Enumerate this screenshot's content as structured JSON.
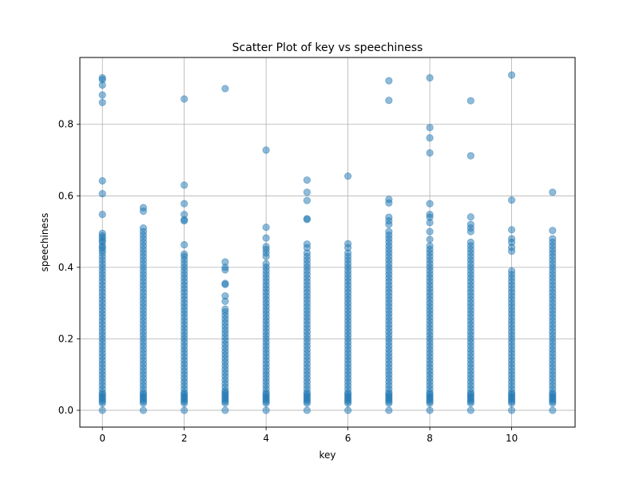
{
  "chart_data": {
    "type": "scatter",
    "title": "Scatter Plot of key vs speechiness",
    "xlabel": "key",
    "ylabel": "speechiness",
    "xlim": [
      -0.55,
      11.55
    ],
    "ylim": [
      -0.047,
      0.987
    ],
    "xticks": [
      0,
      2,
      4,
      6,
      8,
      10
    ],
    "xtick_labels": [
      "0",
      "2",
      "4",
      "6",
      "8",
      "10"
    ],
    "yticks": [
      0.0,
      0.2,
      0.4,
      0.6,
      0.8
    ],
    "ytick_labels": [
      "0.0",
      "0.2",
      "0.4",
      "0.6",
      "0.8"
    ],
    "grid": true,
    "marker_color": "#1f77b4",
    "marker_alpha": 0.5,
    "series": [
      {
        "points": [
          {
            "key": 0,
            "speechiness": [
              0.93,
              0.925,
              0.91,
              0.882,
              0.861,
              0.642,
              0.606,
              0.548,
              0.495,
              0.488,
              0.482,
              0.475,
              0.47,
              0.46,
              0.455,
              0.448,
              0.44,
              0.43,
              0.42,
              0.41,
              0.4,
              0.39,
              0.38,
              0.37,
              0.36,
              0.35,
              0.34,
              0.33,
              0.32,
              0.31,
              0.3,
              0.29,
              0.28,
              0.27,
              0.26,
              0.25,
              0.24,
              0.23,
              0.22,
              0.21,
              0.2,
              0.19,
              0.18,
              0.17,
              0.16,
              0.15,
              0.14,
              0.13,
              0.12,
              0.11,
              0.1,
              0.09,
              0.08,
              0.07,
              0.06,
              0.05,
              0.045,
              0.04,
              0.035,
              0.03,
              0.025,
              0.02,
              0.0
            ]
          },
          {
            "key": 1,
            "speechiness": [
              0.567,
              0.557,
              0.51,
              0.5,
              0.49,
              0.48,
              0.47,
              0.46,
              0.45,
              0.44,
              0.43,
              0.42,
              0.41,
              0.4,
              0.39,
              0.38,
              0.37,
              0.36,
              0.35,
              0.34,
              0.33,
              0.32,
              0.31,
              0.3,
              0.29,
              0.28,
              0.27,
              0.26,
              0.25,
              0.24,
              0.23,
              0.22,
              0.21,
              0.2,
              0.19,
              0.18,
              0.17,
              0.16,
              0.15,
              0.14,
              0.13,
              0.12,
              0.11,
              0.1,
              0.09,
              0.08,
              0.07,
              0.06,
              0.05,
              0.045,
              0.04,
              0.035,
              0.03,
              0.025,
              0.02,
              0.0
            ]
          },
          {
            "key": 2,
            "speechiness": [
              0.871,
              0.63,
              0.578,
              0.548,
              0.533,
              0.53,
              0.463,
              0.437,
              0.43,
              0.42,
              0.41,
              0.4,
              0.39,
              0.38,
              0.37,
              0.36,
              0.35,
              0.34,
              0.33,
              0.32,
              0.31,
              0.3,
              0.29,
              0.28,
              0.27,
              0.26,
              0.25,
              0.24,
              0.23,
              0.22,
              0.21,
              0.2,
              0.19,
              0.18,
              0.17,
              0.16,
              0.15,
              0.14,
              0.13,
              0.12,
              0.11,
              0.1,
              0.09,
              0.08,
              0.07,
              0.06,
              0.05,
              0.045,
              0.04,
              0.035,
              0.03,
              0.025,
              0.02,
              0.0
            ]
          },
          {
            "key": 3,
            "speechiness": [
              0.9,
              0.415,
              0.4,
              0.393,
              0.355,
              0.352,
              0.32,
              0.305,
              0.283,
              0.275,
              0.265,
              0.255,
              0.245,
              0.235,
              0.225,
              0.215,
              0.205,
              0.195,
              0.185,
              0.175,
              0.165,
              0.155,
              0.145,
              0.135,
              0.125,
              0.115,
              0.105,
              0.095,
              0.085,
              0.075,
              0.065,
              0.055,
              0.05,
              0.045,
              0.04,
              0.035,
              0.03,
              0.025,
              0.02,
              0.0
            ]
          },
          {
            "key": 4,
            "speechiness": [
              0.728,
              0.512,
              0.482,
              0.458,
              0.45,
              0.44,
              0.43,
              0.41,
              0.4,
              0.39,
              0.38,
              0.37,
              0.36,
              0.35,
              0.34,
              0.33,
              0.32,
              0.31,
              0.3,
              0.29,
              0.28,
              0.27,
              0.26,
              0.25,
              0.24,
              0.23,
              0.22,
              0.21,
              0.2,
              0.19,
              0.18,
              0.17,
              0.16,
              0.15,
              0.14,
              0.13,
              0.12,
              0.11,
              0.1,
              0.09,
              0.08,
              0.07,
              0.06,
              0.05,
              0.045,
              0.04,
              0.035,
              0.03,
              0.025,
              0.02,
              0.0
            ]
          },
          {
            "key": 5,
            "speechiness": [
              0.644,
              0.61,
              0.587,
              0.536,
              0.534,
              0.465,
              0.455,
              0.44,
              0.43,
              0.42,
              0.41,
              0.4,
              0.39,
              0.38,
              0.37,
              0.36,
              0.35,
              0.34,
              0.33,
              0.32,
              0.31,
              0.3,
              0.29,
              0.28,
              0.27,
              0.26,
              0.25,
              0.24,
              0.23,
              0.22,
              0.21,
              0.2,
              0.19,
              0.18,
              0.17,
              0.16,
              0.15,
              0.14,
              0.13,
              0.12,
              0.11,
              0.1,
              0.09,
              0.08,
              0.07,
              0.06,
              0.05,
              0.045,
              0.04,
              0.035,
              0.03,
              0.025,
              0.02,
              0.0
            ]
          },
          {
            "key": 6,
            "speechiness": [
              0.655,
              0.466,
              0.455,
              0.44,
              0.43,
              0.42,
              0.41,
              0.4,
              0.39,
              0.38,
              0.37,
              0.36,
              0.35,
              0.34,
              0.33,
              0.32,
              0.31,
              0.3,
              0.29,
              0.28,
              0.27,
              0.26,
              0.25,
              0.24,
              0.23,
              0.22,
              0.21,
              0.2,
              0.19,
              0.18,
              0.17,
              0.16,
              0.15,
              0.14,
              0.13,
              0.12,
              0.11,
              0.1,
              0.09,
              0.08,
              0.07,
              0.06,
              0.05,
              0.045,
              0.04,
              0.035,
              0.03,
              0.025,
              0.02,
              0.0
            ]
          },
          {
            "key": 7,
            "speechiness": [
              0.922,
              0.867,
              0.59,
              0.58,
              0.54,
              0.53,
              0.52,
              0.5,
              0.49,
              0.48,
              0.47,
              0.46,
              0.45,
              0.44,
              0.43,
              0.42,
              0.41,
              0.4,
              0.39,
              0.38,
              0.37,
              0.36,
              0.35,
              0.34,
              0.33,
              0.32,
              0.31,
              0.3,
              0.29,
              0.28,
              0.27,
              0.26,
              0.25,
              0.24,
              0.23,
              0.22,
              0.21,
              0.2,
              0.19,
              0.18,
              0.17,
              0.16,
              0.15,
              0.14,
              0.13,
              0.12,
              0.11,
              0.1,
              0.09,
              0.08,
              0.07,
              0.06,
              0.05,
              0.045,
              0.04,
              0.035,
              0.03,
              0.025,
              0.02,
              0.0
            ]
          },
          {
            "key": 8,
            "speechiness": [
              0.93,
              0.791,
              0.762,
              0.72,
              0.578,
              0.548,
              0.54,
              0.525,
              0.5,
              0.478,
              0.46,
              0.45,
              0.44,
              0.43,
              0.42,
              0.41,
              0.4,
              0.39,
              0.38,
              0.37,
              0.36,
              0.35,
              0.34,
              0.33,
              0.32,
              0.31,
              0.3,
              0.29,
              0.28,
              0.27,
              0.26,
              0.25,
              0.24,
              0.23,
              0.22,
              0.21,
              0.2,
              0.19,
              0.18,
              0.17,
              0.16,
              0.15,
              0.14,
              0.13,
              0.12,
              0.11,
              0.1,
              0.09,
              0.08,
              0.07,
              0.06,
              0.05,
              0.045,
              0.04,
              0.035,
              0.03,
              0.025,
              0.02,
              0.0
            ]
          },
          {
            "key": 9,
            "speechiness": [
              0.866,
              0.712,
              0.541,
              0.52,
              0.51,
              0.5,
              0.47,
              0.46,
              0.45,
              0.44,
              0.43,
              0.42,
              0.41,
              0.4,
              0.39,
              0.38,
              0.37,
              0.36,
              0.35,
              0.34,
              0.33,
              0.32,
              0.31,
              0.3,
              0.29,
              0.28,
              0.27,
              0.26,
              0.25,
              0.24,
              0.23,
              0.22,
              0.21,
              0.2,
              0.19,
              0.18,
              0.17,
              0.16,
              0.15,
              0.14,
              0.13,
              0.12,
              0.11,
              0.1,
              0.09,
              0.08,
              0.07,
              0.06,
              0.05,
              0.045,
              0.04,
              0.035,
              0.03,
              0.025,
              0.02,
              0.0
            ]
          },
          {
            "key": 10,
            "speechiness": [
              0.938,
              0.588,
              0.505,
              0.48,
              0.47,
              0.456,
              0.445,
              0.39,
              0.38,
              0.37,
              0.36,
              0.35,
              0.34,
              0.33,
              0.32,
              0.31,
              0.3,
              0.29,
              0.28,
              0.27,
              0.26,
              0.25,
              0.24,
              0.23,
              0.22,
              0.21,
              0.2,
              0.19,
              0.18,
              0.17,
              0.16,
              0.15,
              0.14,
              0.13,
              0.12,
              0.11,
              0.1,
              0.09,
              0.08,
              0.07,
              0.06,
              0.05,
              0.045,
              0.04,
              0.035,
              0.03,
              0.025,
              0.02,
              0.0
            ]
          },
          {
            "key": 11,
            "speechiness": [
              0.61,
              0.503,
              0.48,
              0.47,
              0.46,
              0.45,
              0.44,
              0.43,
              0.42,
              0.41,
              0.4,
              0.39,
              0.38,
              0.37,
              0.36,
              0.35,
              0.34,
              0.33,
              0.32,
              0.31,
              0.3,
              0.29,
              0.28,
              0.27,
              0.26,
              0.25,
              0.24,
              0.23,
              0.22,
              0.21,
              0.2,
              0.19,
              0.18,
              0.17,
              0.16,
              0.15,
              0.14,
              0.13,
              0.12,
              0.11,
              0.1,
              0.09,
              0.08,
              0.07,
              0.06,
              0.05,
              0.045,
              0.04,
              0.035,
              0.03,
              0.025,
              0.02,
              0.0
            ]
          }
        ]
      }
    ]
  }
}
